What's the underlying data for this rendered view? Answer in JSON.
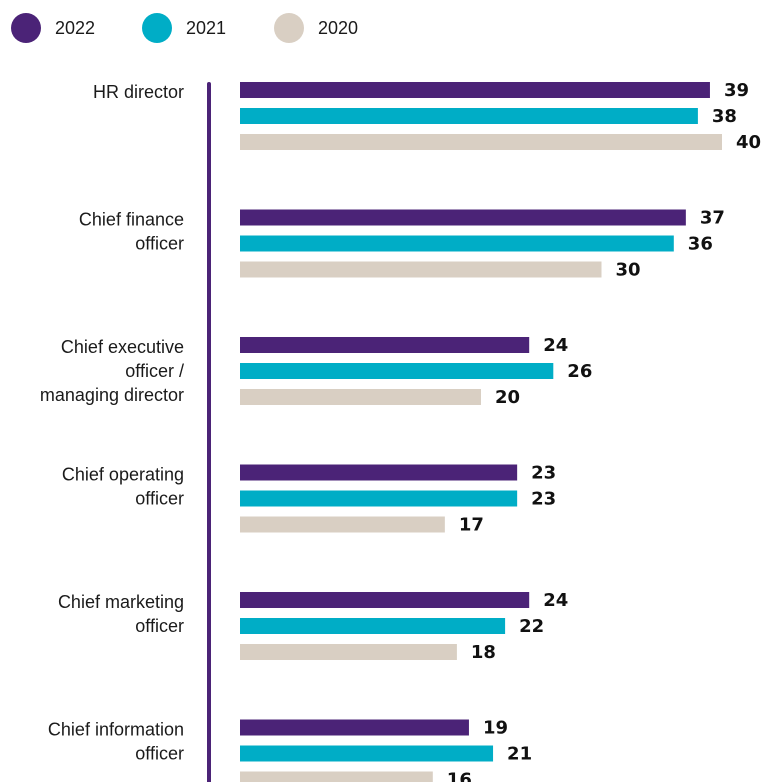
{
  "chart_data": {
    "type": "bar",
    "orientation": "horizontal",
    "categories": [
      [
        "HR director"
      ],
      [
        "Chief finance",
        "officer"
      ],
      [
        "Chief executive",
        "officer /",
        "managing director"
      ],
      [
        "Chief operating",
        "officer"
      ],
      [
        "Chief marketing",
        "officer"
      ],
      [
        "Chief information",
        "officer"
      ]
    ],
    "series": [
      {
        "name": "2022",
        "color": "#4b2377",
        "values": [
          39,
          37,
          24,
          23,
          24,
          19
        ]
      },
      {
        "name": "2021",
        "color": "#00adc6",
        "values": [
          38,
          36,
          26,
          23,
          22,
          21
        ]
      },
      {
        "name": "2020",
        "color": "#d9cfc3",
        "values": [
          40,
          30,
          20,
          17,
          18,
          16
        ]
      }
    ],
    "xlim": [
      0,
      40
    ],
    "grid": false,
    "legend_position": "top-left",
    "axis_color": "#4b2377"
  }
}
